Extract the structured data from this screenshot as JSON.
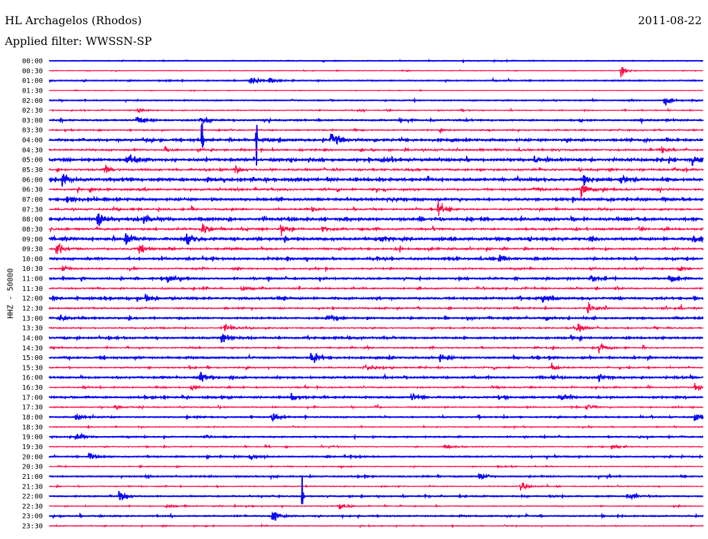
{
  "header": {
    "station": "HL Archagelos (Rhodos)",
    "filter": "Applied filter: WWSSN-SP",
    "date": "2011-08-22"
  },
  "chart_data": {
    "type": "line",
    "subtype": "helicorder",
    "ylabel": "HHZ - 50000",
    "minutes_per_line": 30,
    "colors": [
      "#0a0af0",
      "#ff0a46"
    ],
    "time_labels": [
      "00:00",
      "00:30",
      "01:00",
      "01:30",
      "02:00",
      "02:30",
      "03:00",
      "03:30",
      "04:00",
      "04:30",
      "05:00",
      "05:30",
      "06:00",
      "06:30",
      "07:00",
      "07:30",
      "08:00",
      "08:30",
      "09:00",
      "09:30",
      "10:00",
      "10:30",
      "11:00",
      "11:30",
      "12:00",
      "12:30",
      "13:00",
      "13:30",
      "14:00",
      "14:30",
      "15:00",
      "15:30",
      "16:00",
      "16:30",
      "17:00",
      "17:30",
      "18:00",
      "18:30",
      "19:00",
      "19:30",
      "20:00",
      "20:30",
      "21:00",
      "21:30",
      "22:00",
      "22:30",
      "23:00",
      "23:30"
    ],
    "noise_level": [
      1,
      1.2,
      1.5,
      1,
      1.5,
      2,
      2.5,
      3,
      4,
      4,
      4.5,
      4.5,
      4.5,
      4.5,
      4,
      4,
      4.5,
      4.5,
      4.5,
      4.5,
      3.5,
      3.5,
      3,
      3.5,
      3.5,
      3.5,
      3,
      3,
      3,
      3,
      3,
      3,
      3,
      3,
      3,
      2.5,
      2,
      2,
      2,
      2,
      2,
      2,
      2,
      2,
      2,
      2,
      2,
      2
    ],
    "events": [
      [
        1,
        26.2,
        12
      ],
      [
        2,
        9.2,
        10
      ],
      [
        2,
        10.1,
        6
      ],
      [
        4,
        28.2,
        10
      ],
      [
        5,
        4.1,
        5
      ],
      [
        5,
        18.9,
        4
      ],
      [
        6,
        4.0,
        10
      ],
      [
        6,
        6.9,
        6
      ],
      [
        8,
        7.0,
        140
      ],
      [
        8,
        9.5,
        80
      ],
      [
        8,
        13.0,
        10
      ],
      [
        8,
        12.9,
        8
      ],
      [
        9,
        5.3,
        8
      ],
      [
        9,
        28.0,
        10
      ],
      [
        10,
        3.6,
        14
      ],
      [
        10,
        15.2,
        6
      ],
      [
        10,
        29.5,
        10
      ],
      [
        11,
        8.5,
        8
      ],
      [
        11,
        2.5,
        10
      ],
      [
        12,
        0.6,
        12
      ],
      [
        12,
        24.5,
        10
      ],
      [
        12,
        26.2,
        10
      ],
      [
        13,
        22.2,
        8
      ],
      [
        13,
        24.4,
        16
      ],
      [
        14,
        0.8,
        10
      ],
      [
        15,
        17.8,
        20
      ],
      [
        15,
        12.0,
        6
      ],
      [
        16,
        2.2,
        18
      ],
      [
        16,
        4.3,
        12
      ],
      [
        17,
        7.0,
        15
      ],
      [
        17,
        10.6,
        15
      ],
      [
        17,
        12.5,
        8
      ],
      [
        18,
        3.5,
        15
      ],
      [
        18,
        6.3,
        12
      ],
      [
        18,
        15.1,
        8
      ],
      [
        18,
        29.5,
        10
      ],
      [
        19,
        0.3,
        20
      ],
      [
        19,
        4.1,
        14
      ],
      [
        20,
        20.6,
        10
      ],
      [
        21,
        0.6,
        8
      ],
      [
        21,
        28.8,
        10
      ],
      [
        22,
        5.4,
        8
      ],
      [
        22,
        24.8,
        8
      ],
      [
        22,
        28.4,
        10
      ],
      [
        23,
        8.8,
        8
      ],
      [
        24,
        22.6,
        8
      ],
      [
        24,
        4.4,
        6
      ],
      [
        25,
        24.7,
        10
      ],
      [
        26,
        0.4,
        8
      ],
      [
        26,
        12.7,
        6
      ],
      [
        27,
        8.0,
        10
      ],
      [
        27,
        24.2,
        10
      ],
      [
        28,
        7.9,
        12
      ],
      [
        29,
        25.2,
        12
      ],
      [
        30,
        12.0,
        12
      ],
      [
        30,
        17.9,
        8
      ],
      [
        31,
        14.5,
        10
      ],
      [
        31,
        23.0,
        10
      ],
      [
        32,
        6.9,
        10
      ],
      [
        32,
        25.2,
        8
      ],
      [
        33,
        6.5,
        8
      ],
      [
        33,
        29.6,
        10
      ],
      [
        34,
        11.1,
        8
      ],
      [
        34,
        16.6,
        8
      ],
      [
        34,
        23.5,
        8
      ],
      [
        35,
        3.0,
        8
      ],
      [
        35,
        24.6,
        8
      ],
      [
        36,
        1.2,
        8
      ],
      [
        36,
        10.2,
        12
      ],
      [
        36,
        29.6,
        10
      ],
      [
        38,
        1.2,
        8
      ],
      [
        39,
        18.1,
        6
      ],
      [
        39,
        25.8,
        8
      ],
      [
        40,
        1.8,
        8
      ],
      [
        40,
        9.2,
        8
      ],
      [
        42,
        19.7,
        8
      ],
      [
        43,
        21.6,
        12
      ],
      [
        44,
        11.6,
        70
      ],
      [
        44,
        3.2,
        12
      ],
      [
        44,
        26.5,
        6
      ],
      [
        45,
        5.3,
        6
      ],
      [
        45,
        13.3,
        8
      ],
      [
        46,
        10.2,
        20
      ],
      [
        46,
        30.0,
        6
      ]
    ]
  }
}
